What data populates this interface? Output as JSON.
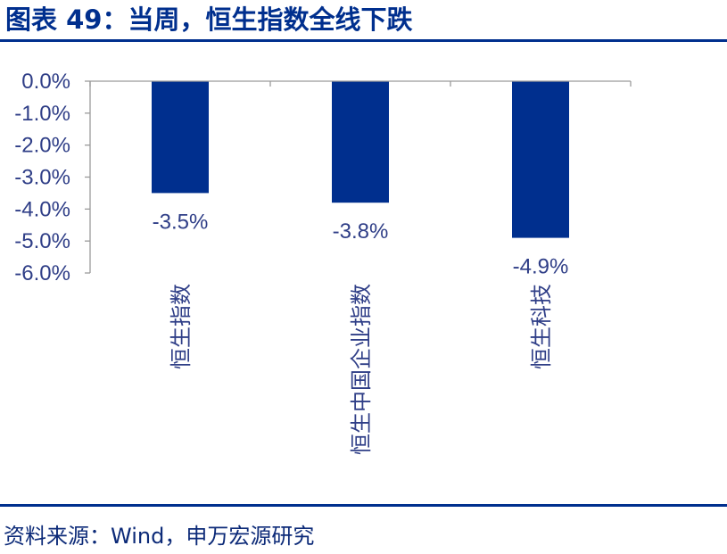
{
  "header": {
    "title": "图表 49：当周，恒生指数全线下跌"
  },
  "footer": {
    "source": "资料来源：Wind，申万宏源研究"
  },
  "colors": {
    "brand": "#002f8e",
    "bar": "#002f8e",
    "text": "#2f3e87"
  },
  "chart_data": {
    "type": "bar",
    "categories": [
      "恒生指数",
      "恒生中国企业指数",
      "恒生科技"
    ],
    "values": [
      -3.5,
      -3.8,
      -4.9
    ],
    "data_labels": [
      "-3.5%",
      "-3.8%",
      "-4.9%"
    ],
    "y_ticks": [
      "0.0%",
      "-1.0%",
      "-2.0%",
      "-3.0%",
      "-4.0%",
      "-5.0%",
      "-6.0%"
    ],
    "ylim": [
      -6.0,
      0.0
    ],
    "grid": false,
    "legend": "none"
  }
}
